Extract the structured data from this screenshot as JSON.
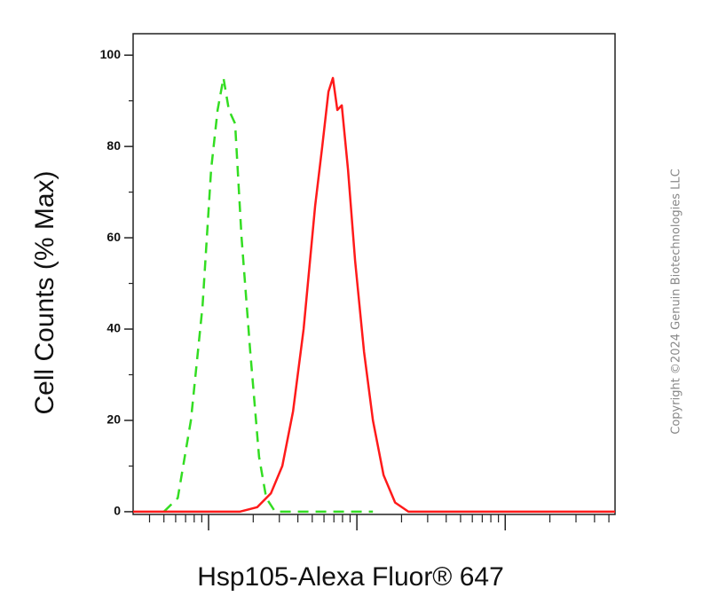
{
  "chart_data": {
    "type": "line",
    "y_label": "Cell Counts (% Max)",
    "x_label": "Hsp105-Alexa Fluor® 647",
    "copyright": "Copyright ©2024 Genuin Biotechnologies LLC",
    "xscale": "log",
    "xlim": [
      31,
      55000
    ],
    "xticks": [
      100,
      1000,
      10000
    ],
    "xminor_ticks": [
      40,
      50,
      60,
      70,
      80,
      90,
      200,
      300,
      400,
      500,
      600,
      700,
      800,
      900,
      2000,
      3000,
      4000,
      5000,
      6000,
      7000,
      8000,
      9000,
      20000,
      30000,
      40000,
      50000
    ],
    "ylim": [
      -0.6,
      104.7
    ],
    "yticks": [
      0,
      20,
      40,
      60,
      80,
      100
    ],
    "yminor_ticks": [
      10,
      30,
      50,
      70,
      90
    ],
    "series": [
      {
        "color": "#33dd22",
        "dashed": true,
        "x": [
          50,
          62,
          76,
          91,
          104,
          115,
          126,
          137,
          151,
          167,
          191,
          219,
          245,
          281,
          1282
        ],
        "values": [
          0,
          3,
          20,
          45,
          75,
          88,
          95,
          88,
          85,
          60,
          35,
          12,
          3,
          0,
          0
        ]
      },
      {
        "color": "#ff1a1a",
        "dashed": false,
        "x": [
          31,
          162,
          213,
          263,
          314,
          371,
          437,
          523,
          584,
          643,
          689,
          738,
          791,
          871,
          973,
          1117,
          1282,
          1514,
          1809,
          2225,
          55000
        ],
        "values": [
          0,
          0,
          1,
          4,
          10,
          22,
          40,
          67,
          80,
          92,
          95,
          88,
          89,
          75,
          55,
          35,
          20,
          8,
          2,
          0,
          0
        ]
      }
    ]
  }
}
